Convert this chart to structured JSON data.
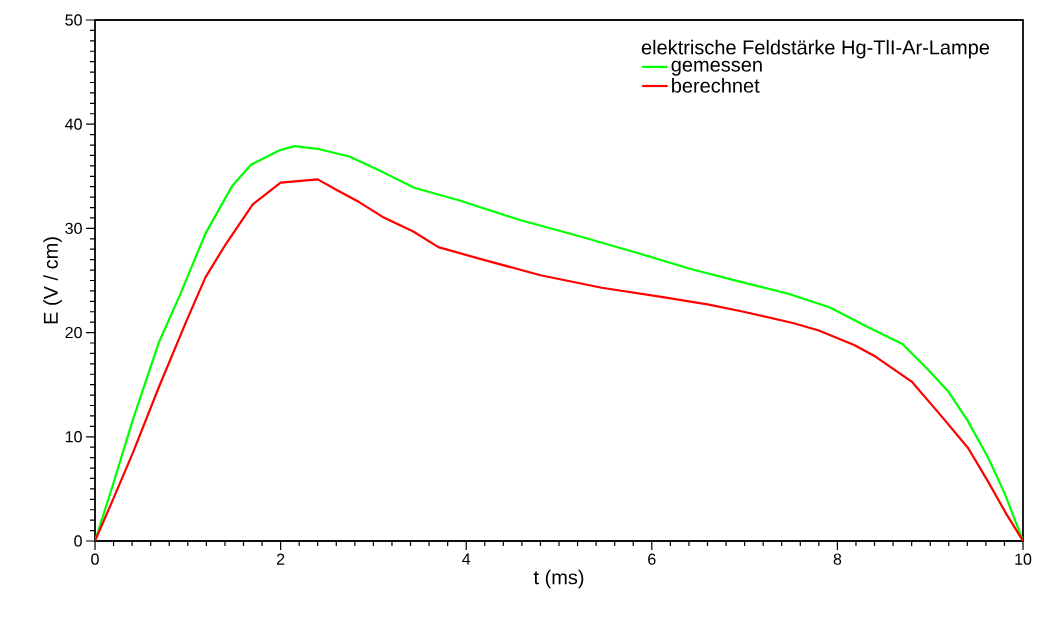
{
  "chart_data": {
    "type": "line",
    "xlabel": "t (ms)",
    "ylabel": "E (V / cm)",
    "legend_title": "elektrische Feldstärke Hg-TlI-Ar-Lampe",
    "xlim": [
      0,
      10
    ],
    "ylim": [
      0,
      50
    ],
    "xticks": [
      0,
      2,
      4,
      6,
      8,
      10
    ],
    "yticks": [
      0,
      10,
      20,
      30,
      40,
      50
    ],
    "grid": false,
    "legend": "top right",
    "marker": "none",
    "line_style": "solid",
    "series": [
      {
        "name": "gemessen",
        "color": "#00ff00",
        "x": [
          0,
          0.19,
          0.41,
          0.69,
          0.91,
          1.19,
          1.48,
          1.68,
          1.99,
          2.15,
          2.42,
          2.74,
          3.1,
          3.44,
          3.92,
          4.58,
          5.24,
          5.9,
          6.42,
          6.99,
          7.48,
          7.92,
          8.31,
          8.7,
          8.97,
          9.19,
          9.4,
          9.63,
          9.81,
          10
        ],
        "values": [
          0,
          5.3,
          11.7,
          19.1,
          23.5,
          29.5,
          34.1,
          36.1,
          37.5,
          37.9,
          37.6,
          36.9,
          35.4,
          33.9,
          32.7,
          30.8,
          29.2,
          27.5,
          26.1,
          24.8,
          23.7,
          22.4,
          20.6,
          18.9,
          16.5,
          14.4,
          11.6,
          7.9,
          4.4,
          0
        ]
      },
      {
        "name": "berechnet",
        "color": "#ff0000",
        "x": [
          0,
          0.19,
          0.41,
          0.69,
          0.98,
          1.19,
          1.41,
          1.7,
          2.0,
          2.4,
          2.6,
          2.85,
          3.1,
          3.43,
          3.7,
          4.14,
          4.8,
          5.46,
          6.12,
          6.6,
          6.99,
          7.53,
          7.8,
          8.18,
          8.41,
          8.8,
          9.1,
          9.41,
          9.63,
          9.82,
          10
        ],
        "values": [
          0,
          3.9,
          8.5,
          14.8,
          21.0,
          25.3,
          28.5,
          32.3,
          34.4,
          34.7,
          33.7,
          32.5,
          31.1,
          29.7,
          28.2,
          27.1,
          25.5,
          24.3,
          23.4,
          22.7,
          22.0,
          20.9,
          20.2,
          18.8,
          17.7,
          15.3,
          12.2,
          8.9,
          5.6,
          2.6,
          0
        ]
      }
    ]
  }
}
